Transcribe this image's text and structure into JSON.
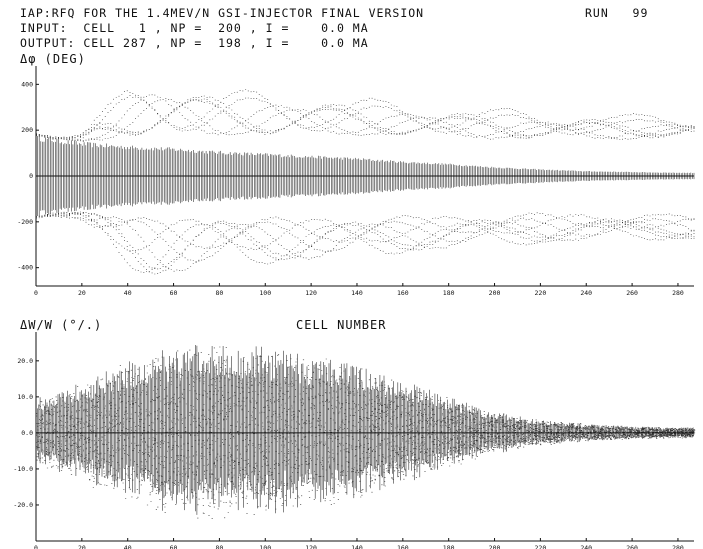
{
  "header": {
    "line1": "IAP:RFQ FOR THE 1.4MEV/N GSI-INJECTOR FINAL VERSION",
    "run": "RUN   99",
    "line2": "INPUT:  CELL   1 , NP =  200 , I =    0.0 MA",
    "line3": "OUTPUT: CELL 287 , NP =  198 , I =    0.0 MA"
  },
  "colors": {
    "ink": "#111111",
    "background": "#ffffff"
  },
  "chart_data": [
    {
      "type": "scatter",
      "ylabel": "Δφ (DEG)",
      "xlim": [
        0,
        287
      ],
      "ylim": [
        -480,
        480
      ],
      "x_ticks": [
        0,
        20,
        40,
        60,
        80,
        100,
        120,
        140,
        160,
        180,
        200,
        220,
        240,
        260,
        280
      ],
      "y_ticks": [
        400,
        200,
        0,
        -200,
        -400
      ],
      "y_tick_labels": [
        "400",
        "200",
        "0",
        "-200",
        "-400"
      ],
      "envelope": {
        "cell": [
          0,
          20,
          40,
          50,
          60,
          80,
          100,
          120,
          140,
          160,
          180,
          200,
          220,
          240,
          260,
          280,
          287
        ],
        "core_halfwidth_deg": [
          180,
          150,
          135,
          130,
          125,
          110,
          100,
          90,
          80,
          65,
          55,
          40,
          30,
          22,
          18,
          15,
          15
        ],
        "halo_outer_deg": [
          180,
          230,
          420,
          470,
          460,
          430,
          430,
          420,
          410,
          400,
          385,
          375,
          370,
          365,
          360,
          365,
          370
        ]
      },
      "grid": false
    },
    {
      "type": "scatter",
      "ylabel": "ΔW/W (°/.)",
      "xlabel": "CELL NUMBER",
      "xlim": [
        0,
        287
      ],
      "ylim": [
        -30,
        28
      ],
      "x_ticks": [
        0,
        20,
        40,
        60,
        80,
        100,
        120,
        140,
        160,
        180,
        200,
        220,
        240,
        260,
        280
      ],
      "y_ticks": [
        20,
        10,
        0,
        -10,
        -20
      ],
      "y_tick_labels": [
        "20.0",
        "10.0",
        "0.0",
        "-10.0",
        "-20.0"
      ],
      "envelope": {
        "cell": [
          0,
          20,
          40,
          60,
          80,
          100,
          120,
          140,
          160,
          180,
          200,
          220,
          240,
          260,
          280,
          287
        ],
        "halfwidth_percent": [
          10,
          14,
          20,
          24,
          25,
          24,
          22,
          19,
          15,
          10,
          6,
          3.5,
          2.5,
          1.8,
          1.5,
          1.5
        ]
      },
      "grid": false
    }
  ]
}
